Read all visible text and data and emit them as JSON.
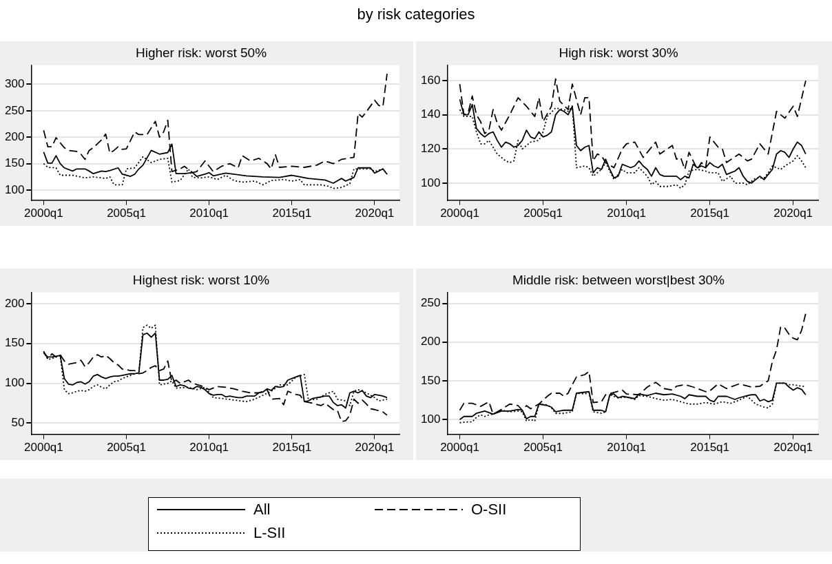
{
  "chart_data": [
    {
      "type": "line",
      "title": "Higher risk: worst 50%",
      "annotations": [
        "by risk categories"
      ],
      "xlim": [
        "1999-04",
        "2021-07"
      ],
      "xticks": [
        {
          "value": "2000-01",
          "label": "2000q1"
        },
        {
          "value": "2005-01",
          "label": "2005q1"
        },
        {
          "value": "2010-01",
          "label": "2010q1"
        },
        {
          "value": "2015-01",
          "label": "2015q1"
        },
        {
          "value": "2020-01",
          "label": "2020q1"
        }
      ],
      "ylim": [
        81,
        336
      ],
      "yticks": [
        100,
        150,
        200,
        250,
        300
      ],
      "grid": "y",
      "series": [
        {
          "color": "#000000",
          "line_style": "solid",
          "x": [
            "2000-01",
            "2000-04",
            "2000-07",
            "2000-10",
            "2001-01",
            "2001-04",
            "2001-10",
            "2002-01",
            "2002-07",
            "2002-10",
            "2003-01",
            "2003-07",
            "2003-10",
            "2004-01",
            "2004-07",
            "2004-10",
            "2005-04",
            "2005-07",
            "2005-10",
            "2006-01",
            "2006-07",
            "2007-01",
            "2007-07",
            "2007-10",
            "2008-01",
            "2008-07",
            "2009-01",
            "2009-04",
            "2009-10",
            "2010-01",
            "2010-04",
            "2011-01",
            "2012-04",
            "2013-04",
            "2014-04",
            "2015-01",
            "2016-01",
            "2017-01",
            "2017-07",
            "2018-01",
            "2018-04",
            "2018-10",
            "2019-01",
            "2019-10",
            "2020-01",
            "2020-07",
            "2020-10"
          ],
          "values": [
            172,
            151,
            151,
            165,
            150,
            142,
            136,
            140,
            140,
            136,
            131,
            136,
            135,
            137,
            142,
            130,
            126,
            130,
            140,
            147,
            175,
            168,
            171,
            187,
            131,
            131,
            133,
            126,
            130,
            133,
            127,
            132,
            127,
            125,
            124,
            128,
            122,
            119,
            113,
            122,
            117,
            124,
            142,
            142,
            132,
            140,
            130
          ]
        },
        {
          "color": "#000000",
          "line_style": "dashed",
          "x": [
            "2000-01",
            "2000-04",
            "2000-07",
            "2000-10",
            "2001-04",
            "2001-07",
            "2002-01",
            "2002-04",
            "2002-07",
            "2002-10",
            "2003-01",
            "2003-07",
            "2003-10",
            "2004-01",
            "2004-04",
            "2004-07",
            "2004-10",
            "2005-01",
            "2005-07",
            "2005-10",
            "2006-04",
            "2006-10",
            "2007-01",
            "2007-04",
            "2007-07",
            "2007-10",
            "2008-04",
            "2008-07",
            "2009-01",
            "2009-04",
            "2009-10",
            "2010-04",
            "2010-10",
            "2011-04",
            "2011-10",
            "2012-01",
            "2012-07",
            "2013-01",
            "2013-07",
            "2013-10",
            "2014-01",
            "2014-04",
            "2015-01",
            "2015-10",
            "2016-07",
            "2017-01",
            "2017-07",
            "2018-01",
            "2018-10",
            "2019-01",
            "2019-04",
            "2019-07",
            "2020-01",
            "2020-04",
            "2020-07",
            "2020-10"
          ],
          "values": [
            213,
            182,
            182,
            199,
            180,
            175,
            173,
            168,
            158,
            175,
            180,
            195,
            206,
            170,
            175,
            182,
            177,
            178,
            210,
            205,
            205,
            230,
            200,
            210,
            232,
            135,
            140,
            145,
            133,
            135,
            155,
            135,
            145,
            150,
            142,
            165,
            155,
            160,
            150,
            140,
            167,
            143,
            145,
            143,
            147,
            155,
            150,
            158,
            162,
            245,
            238,
            248,
            270,
            260,
            258,
            320
          ]
        },
        {
          "color": "#000000",
          "line_style": "dotted",
          "x": [
            "2000-01",
            "2000-04",
            "2000-10",
            "2001-01",
            "2001-10",
            "2002-07",
            "2003-01",
            "2003-10",
            "2004-01",
            "2004-04",
            "2004-10",
            "2005-01",
            "2005-07",
            "2006-01",
            "2006-07",
            "2007-01",
            "2007-07",
            "2007-10",
            "2008-04",
            "2008-10",
            "2009-01",
            "2009-07",
            "2010-01",
            "2010-07",
            "2011-01",
            "2011-07",
            "2012-01",
            "2012-10",
            "2013-04",
            "2013-10",
            "2014-07",
            "2015-01",
            "2015-07",
            "2015-10",
            "2016-10",
            "2017-04",
            "2017-07",
            "2018-01",
            "2018-07",
            "2018-10",
            "2019-10",
            "2020-01",
            "2020-07",
            "2020-10"
          ],
          "values": [
            150,
            143,
            142,
            128,
            128,
            123,
            125,
            122,
            125,
            110,
            110,
            140,
            142,
            163,
            152,
            158,
            160,
            115,
            118,
            140,
            124,
            123,
            125,
            120,
            128,
            118,
            115,
            117,
            110,
            118,
            120,
            117,
            120,
            110,
            110,
            107,
            103,
            105,
            112,
            140,
            140,
            135,
            140,
            130
          ]
        }
      ]
    },
    {
      "type": "line",
      "title": "High risk: worst 30%",
      "xlim": [
        "1999-04",
        "2021-07"
      ],
      "xticks": [
        {
          "value": "2000-01",
          "label": "2000q1"
        },
        {
          "value": "2005-01",
          "label": "2005q1"
        },
        {
          "value": "2010-01",
          "label": "2010q1"
        },
        {
          "value": "2015-01",
          "label": "2015q1"
        },
        {
          "value": "2020-01",
          "label": "2020q1"
        }
      ],
      "ylim": [
        90,
        169
      ],
      "yticks": [
        100,
        120,
        140,
        160
      ],
      "grid": "y",
      "series": [
        {
          "color": "#000000",
          "line_style": "solid",
          "x": [
            "2000-01",
            "2000-04",
            "2000-07",
            "2000-10",
            "2001-01",
            "2001-04",
            "2001-07",
            "2001-10",
            "2002-01",
            "2002-04",
            "2002-07",
            "2002-10",
            "2003-01",
            "2003-04",
            "2003-07",
            "2003-10",
            "2004-01",
            "2004-04",
            "2004-07",
            "2004-10",
            "2005-01",
            "2005-04",
            "2005-07",
            "2005-10",
            "2006-01",
            "2006-04",
            "2006-07",
            "2006-10",
            "2007-01",
            "2007-04",
            "2007-07",
            "2007-10",
            "2008-01",
            "2008-04",
            "2008-07",
            "2008-10",
            "2009-01",
            "2009-04",
            "2009-07",
            "2009-10",
            "2010-01",
            "2010-04",
            "2010-07",
            "2010-10",
            "2011-01",
            "2011-04",
            "2011-07",
            "2011-10",
            "2012-01",
            "2012-04",
            "2012-10",
            "2013-01",
            "2013-04",
            "2013-07",
            "2013-10",
            "2014-01",
            "2014-04",
            "2014-07",
            "2014-10",
            "2015-01",
            "2015-04",
            "2015-07",
            "2015-10",
            "2016-01",
            "2016-04",
            "2016-07",
            "2016-10",
            "2017-01",
            "2017-04",
            "2017-07",
            "2017-10",
            "2018-01",
            "2018-04",
            "2018-07",
            "2018-10",
            "2019-01",
            "2019-04",
            "2019-07",
            "2019-10",
            "2020-01",
            "2020-04",
            "2020-07",
            "2020-10"
          ],
          "values": [
            149,
            140,
            140,
            146,
            132,
            129,
            127,
            129,
            130,
            125,
            121,
            124,
            123,
            121,
            122,
            125,
            131,
            127,
            126,
            130,
            127,
            128,
            130,
            140,
            143,
            142,
            140,
            145,
            122,
            119,
            121,
            122,
            106,
            109,
            108,
            114,
            108,
            103,
            104,
            111,
            110,
            109,
            110,
            113,
            110,
            108,
            104,
            109,
            105,
            104,
            104,
            104,
            102,
            104,
            103,
            111,
            109,
            110,
            109,
            112,
            110,
            109,
            111,
            105,
            106,
            107,
            109,
            104,
            101,
            100,
            102,
            104,
            102,
            105,
            108,
            117,
            119,
            118,
            115,
            120,
            124,
            122,
            117
          ]
        },
        {
          "color": "#000000",
          "line_style": "dashed",
          "x": [
            "2000-01",
            "2000-04",
            "2000-07",
            "2000-10",
            "2001-01",
            "2001-04",
            "2001-07",
            "2001-10",
            "2002-01",
            "2002-04",
            "2002-07",
            "2003-01",
            "2003-07",
            "2004-01",
            "2004-07",
            "2004-10",
            "2005-01",
            "2005-07",
            "2005-10",
            "2006-01",
            "2006-07",
            "2006-10",
            "2007-04",
            "2007-07",
            "2007-10",
            "2008-01",
            "2008-04",
            "2008-07",
            "2008-10",
            "2009-04",
            "2009-10",
            "2010-01",
            "2010-07",
            "2011-01",
            "2011-10",
            "2012-01",
            "2012-10",
            "2013-01",
            "2013-04",
            "2013-07",
            "2013-10",
            "2014-04",
            "2014-07",
            "2014-10",
            "2015-01",
            "2015-07",
            "2015-10",
            "2016-01",
            "2016-10",
            "2017-04",
            "2017-07",
            "2018-01",
            "2018-07",
            "2019-01",
            "2019-07",
            "2020-01",
            "2020-04",
            "2020-10"
          ],
          "values": [
            158,
            140,
            141,
            151,
            140,
            136,
            129,
            131,
            143,
            135,
            131,
            140,
            150,
            145,
            139,
            150,
            136,
            145,
            161,
            148,
            143,
            158,
            140,
            150,
            150,
            113,
            117,
            116,
            112,
            109,
            120,
            123,
            124,
            115,
            124,
            117,
            122,
            114,
            115,
            108,
            118,
            108,
            112,
            109,
            127,
            121,
            120,
            112,
            117,
            113,
            114,
            123,
            117,
            142,
            138,
            145,
            139,
            160
          ]
        },
        {
          "color": "#000000",
          "line_style": "dotted",
          "x": [
            "2000-01",
            "2000-04",
            "2000-10",
            "2001-01",
            "2001-04",
            "2001-07",
            "2001-10",
            "2002-04",
            "2002-10",
            "2003-01",
            "2003-04",
            "2003-07",
            "2003-10",
            "2004-04",
            "2004-10",
            "2005-01",
            "2005-04",
            "2005-10",
            "2006-04",
            "2006-07",
            "2006-10",
            "2007-01",
            "2007-07",
            "2007-10",
            "2008-01",
            "2008-07",
            "2008-10",
            "2009-04",
            "2009-10",
            "2010-01",
            "2010-07",
            "2010-10",
            "2011-04",
            "2011-07",
            "2011-10",
            "2012-01",
            "2012-07",
            "2013-01",
            "2013-04",
            "2013-07",
            "2013-10",
            "2014-04",
            "2014-10",
            "2015-01",
            "2015-07",
            "2015-10",
            "2016-04",
            "2016-07",
            "2017-01",
            "2017-04",
            "2017-10",
            "2018-04",
            "2018-07",
            "2018-10",
            "2019-04",
            "2019-07",
            "2020-01",
            "2020-04",
            "2020-07",
            "2020-10"
          ],
          "values": [
            143,
            139,
            139,
            130,
            123,
            123,
            125,
            117,
            113,
            112,
            113,
            125,
            120,
            124,
            125,
            130,
            139,
            144,
            143,
            142,
            145,
            109,
            110,
            109,
            104,
            108,
            112,
            102,
            108,
            106,
            106,
            109,
            104,
            99,
            101,
            98,
            98,
            99,
            97,
            99,
            107,
            108,
            107,
            106,
            106,
            101,
            104,
            100,
            100,
            99,
            103,
            103,
            106,
            110,
            108,
            110,
            113,
            116,
            113,
            109
          ]
        }
      ]
    },
    {
      "type": "line",
      "title": "Highest risk: worst 10%",
      "xlim": [
        "1999-04",
        "2021-07"
      ],
      "xticks": [
        {
          "value": "2000-01",
          "label": "2000q1"
        },
        {
          "value": "2005-01",
          "label": "2005q1"
        },
        {
          "value": "2010-01",
          "label": "2010q1"
        },
        {
          "value": "2015-01",
          "label": "2015q1"
        },
        {
          "value": "2020-01",
          "label": "2020q1"
        }
      ],
      "ylim": [
        36,
        214
      ],
      "yticks": [
        50,
        100,
        150,
        200
      ],
      "grid": "y",
      "series": [
        {
          "color": "#000000",
          "line_style": "solid",
          "x": [
            "2000-01",
            "2000-04",
            "2000-07",
            "2000-10",
            "2001-01",
            "2001-04",
            "2001-07",
            "2001-10",
            "2002-01",
            "2002-04",
            "2002-07",
            "2002-10",
            "2003-01",
            "2003-04",
            "2003-07",
            "2003-10",
            "2004-01",
            "2004-04",
            "2004-07",
            "2004-10",
            "2005-01",
            "2005-04",
            "2005-07",
            "2005-10",
            "2006-01",
            "2006-04",
            "2006-07",
            "2006-10",
            "2007-01",
            "2007-04",
            "2007-07",
            "2007-10",
            "2008-01",
            "2008-04",
            "2008-07",
            "2008-10",
            "2009-01",
            "2009-04",
            "2009-07",
            "2009-10",
            "2010-01",
            "2010-04",
            "2010-07",
            "2010-10",
            "2011-01",
            "2011-04",
            "2011-07",
            "2011-10",
            "2012-01",
            "2012-04",
            "2012-07",
            "2012-10",
            "2013-01",
            "2013-04",
            "2013-07",
            "2013-10",
            "2014-01",
            "2014-04",
            "2014-07",
            "2014-10",
            "2015-01",
            "2015-04",
            "2015-07",
            "2015-10",
            "2016-01",
            "2016-04",
            "2016-07",
            "2016-10",
            "2017-01",
            "2017-04",
            "2017-07",
            "2017-10",
            "2018-01",
            "2018-04",
            "2018-07",
            "2018-10",
            "2019-01",
            "2019-04",
            "2019-07",
            "2019-10",
            "2020-01",
            "2020-04",
            "2020-07",
            "2020-10"
          ],
          "values": [
            138,
            133,
            133,
            134,
            135,
            106,
            99,
            98,
            101,
            102,
            99,
            102,
            109,
            111,
            108,
            106,
            108,
            109,
            109,
            110,
            111,
            112,
            112,
            113,
            161,
            163,
            158,
            163,
            104,
            104,
            105,
            110,
            96,
            98,
            97,
            94,
            93,
            96,
            95,
            92,
            87,
            85,
            86,
            86,
            83,
            84,
            83,
            82,
            82,
            84,
            84,
            84,
            88,
            89,
            93,
            91,
            96,
            95,
            96,
            104,
            106,
            108,
            110,
            77,
            78,
            81,
            82,
            83,
            84,
            84,
            76,
            72,
            73,
            69,
            88,
            90,
            88,
            91,
            84,
            82,
            86,
            85,
            84,
            82
          ]
        },
        {
          "color": "#000000",
          "line_style": "dashed",
          "x": [
            "2000-01",
            "2000-04",
            "2000-07",
            "2000-10",
            "2001-01",
            "2001-04",
            "2001-07",
            "2001-10",
            "2002-01",
            "2002-04",
            "2002-07",
            "2002-10",
            "2003-01",
            "2003-04",
            "2003-07",
            "2003-10",
            "2004-01",
            "2004-04",
            "2004-07",
            "2004-10",
            "2005-01",
            "2005-04",
            "2005-07",
            "2005-10",
            "2006-01",
            "2006-04",
            "2006-07",
            "2006-10",
            "2007-01",
            "2007-04",
            "2007-07",
            "2007-10",
            "2008-01",
            "2008-04",
            "2008-10",
            "2009-01",
            "2009-07",
            "2010-01",
            "2010-07",
            "2011-01",
            "2011-07",
            "2012-01",
            "2012-07",
            "2013-01",
            "2013-07",
            "2013-10",
            "2014-04",
            "2014-07",
            "2014-10",
            "2015-04",
            "2015-07",
            "2015-10",
            "2016-04",
            "2016-10",
            "2017-01",
            "2017-07",
            "2017-10",
            "2018-01",
            "2018-04",
            "2018-07",
            "2018-10",
            "2019-01",
            "2019-04",
            "2019-07",
            "2019-10",
            "2020-01",
            "2020-07",
            "2020-10"
          ],
          "values": [
            140,
            131,
            137,
            133,
            136,
            128,
            124,
            125,
            126,
            129,
            121,
            126,
            133,
            136,
            133,
            135,
            131,
            126,
            123,
            118,
            117,
            116,
            116,
            112,
            113,
            116,
            120,
            122,
            116,
            118,
            128,
            101,
            104,
            100,
            104,
            100,
            97,
            92,
            96,
            95,
            93,
            90,
            88,
            88,
            92,
            80,
            81,
            73,
            90,
            86,
            85,
            77,
            75,
            72,
            75,
            67,
            66,
            52,
            53,
            60,
            80,
            75,
            79,
            74,
            68,
            67,
            64,
            60
          ]
        },
        {
          "color": "#000000",
          "line_style": "dotted",
          "x": [
            "2000-01",
            "2000-04",
            "2000-07",
            "2000-10",
            "2001-01",
            "2001-04",
            "2001-07",
            "2001-10",
            "2002-01",
            "2002-04",
            "2002-07",
            "2002-10",
            "2003-01",
            "2003-04",
            "2003-07",
            "2003-10",
            "2004-01",
            "2004-04",
            "2004-07",
            "2004-10",
            "2005-01",
            "2005-04",
            "2005-07",
            "2005-10",
            "2006-01",
            "2006-04",
            "2006-07",
            "2006-10",
            "2007-01",
            "2007-04",
            "2007-07",
            "2007-10",
            "2008-01",
            "2008-10",
            "2009-04",
            "2009-10",
            "2010-04",
            "2010-10",
            "2011-07",
            "2012-04",
            "2012-10",
            "2013-04",
            "2013-10",
            "2014-04",
            "2014-10",
            "2015-04",
            "2015-10",
            "2016-01",
            "2016-07",
            "2017-01",
            "2017-07",
            "2017-10",
            "2018-04",
            "2018-07",
            "2018-10",
            "2019-01",
            "2019-07",
            "2020-01",
            "2020-04",
            "2020-10"
          ],
          "values": [
            140,
            130,
            131,
            133,
            135,
            92,
            87,
            88,
            90,
            91,
            90,
            92,
            96,
            98,
            95,
            93,
            98,
            102,
            103,
            106,
            108,
            110,
            112,
            113,
            170,
            173,
            169,
            173,
            98,
            99,
            100,
            103,
            94,
            95,
            92,
            95,
            82,
            81,
            79,
            77,
            80,
            85,
            90,
            98,
            98,
            108,
            111,
            79,
            80,
            86,
            90,
            80,
            78,
            72,
            90,
            92,
            88,
            82,
            78,
            80
          ]
        }
      ]
    },
    {
      "type": "line",
      "title": "Middle risk: between worst|best 30%",
      "legend": "bottom",
      "xlim": [
        "1999-04",
        "2021-07"
      ],
      "xticks": [
        {
          "value": "2000-01",
          "label": "2000q1"
        },
        {
          "value": "2005-01",
          "label": "2005q1"
        },
        {
          "value": "2010-01",
          "label": "2010q1"
        },
        {
          "value": "2015-01",
          "label": "2015q1"
        },
        {
          "value": "2020-01",
          "label": "2020q1"
        }
      ],
      "ylim": [
        81,
        264
      ],
      "yticks": [
        100,
        150,
        200,
        250
      ],
      "grid": "y",
      "series": [
        {
          "name": "All",
          "color": "#000000",
          "line_style": "solid",
          "x": [
            "2000-01",
            "2000-04",
            "2000-10",
            "2001-01",
            "2001-07",
            "2002-01",
            "2002-07",
            "2003-01",
            "2003-07",
            "2003-10",
            "2004-01",
            "2004-04",
            "2004-07",
            "2004-10",
            "2005-04",
            "2005-07",
            "2005-10",
            "2006-04",
            "2006-10",
            "2007-01",
            "2007-10",
            "2008-01",
            "2008-07",
            "2008-10",
            "2009-01",
            "2009-04",
            "2009-07",
            "2009-10",
            "2010-04",
            "2010-07",
            "2010-10",
            "2011-04",
            "2011-10",
            "2012-04",
            "2012-10",
            "2013-04",
            "2013-07",
            "2013-10",
            "2014-04",
            "2014-10",
            "2015-01",
            "2015-04",
            "2015-07",
            "2016-01",
            "2016-04",
            "2016-07",
            "2016-10",
            "2017-04",
            "2017-07",
            "2017-10",
            "2018-01",
            "2018-04",
            "2018-07",
            "2018-10",
            "2019-01",
            "2019-07",
            "2019-10",
            "2020-01",
            "2020-04",
            "2020-07",
            "2020-10"
          ],
          "values": [
            100,
            104,
            104,
            108,
            111,
            107,
            111,
            111,
            113,
            112,
            101,
            104,
            104,
            120,
            118,
            116,
            110,
            112,
            112,
            134,
            136,
            112,
            112,
            110,
            132,
            133,
            128,
            130,
            128,
            127,
            133,
            131,
            134,
            132,
            133,
            130,
            127,
            132,
            130,
            130,
            125,
            123,
            130,
            130,
            128,
            126,
            128,
            131,
            132,
            132,
            124,
            126,
            123,
            125,
            147,
            147,
            142,
            138,
            141,
            139,
            132
          ]
        },
        {
          "name": "O-SII",
          "color": "#000000",
          "line_style": "dashed",
          "x": [
            "2000-01",
            "2000-04",
            "2000-10",
            "2001-04",
            "2001-10",
            "2002-01",
            "2002-07",
            "2003-01",
            "2003-07",
            "2003-10",
            "2004-01",
            "2004-04",
            "2004-10",
            "2005-04",
            "2005-07",
            "2006-01",
            "2006-04",
            "2006-07",
            "2006-10",
            "2007-01",
            "2007-07",
            "2007-10",
            "2008-01",
            "2008-07",
            "2008-10",
            "2009-10",
            "2010-01",
            "2010-10",
            "2011-04",
            "2011-10",
            "2012-04",
            "2012-10",
            "2013-01",
            "2013-07",
            "2014-01",
            "2014-10",
            "2015-01",
            "2015-07",
            "2016-01",
            "2016-10",
            "2017-07",
            "2018-01",
            "2018-07",
            "2018-10",
            "2019-01",
            "2019-04",
            "2019-07",
            "2019-10",
            "2020-01",
            "2020-04",
            "2020-07",
            "2020-10"
          ],
          "values": [
            112,
            121,
            121,
            117,
            123,
            107,
            113,
            120,
            118,
            112,
            118,
            114,
            120,
            130,
            134,
            134,
            130,
            134,
            145,
            155,
            158,
            162,
            122,
            123,
            132,
            138,
            133,
            132,
            142,
            148,
            140,
            138,
            143,
            145,
            142,
            136,
            137,
            146,
            140,
            146,
            142,
            143,
            150,
            175,
            190,
            220,
            218,
            210,
            205,
            203,
            215,
            237
          ]
        },
        {
          "name": "L-SII",
          "color": "#000000",
          "line_style": "dotted",
          "x": [
            "2000-01",
            "2000-07",
            "2000-10",
            "2001-01",
            "2001-04",
            "2001-07",
            "2001-10",
            "2002-01",
            "2002-07",
            "2003-01",
            "2003-07",
            "2003-10",
            "2004-01",
            "2004-04",
            "2004-07",
            "2004-10",
            "2005-04",
            "2005-07",
            "2005-10",
            "2006-04",
            "2006-10",
            "2007-01",
            "2007-07",
            "2007-10",
            "2008-01",
            "2008-07",
            "2008-10",
            "2009-01",
            "2009-07",
            "2010-01",
            "2010-07",
            "2010-10",
            "2011-04",
            "2011-10",
            "2012-04",
            "2012-10",
            "2013-04",
            "2013-10",
            "2014-04",
            "2014-10",
            "2015-04",
            "2015-10",
            "2016-04",
            "2016-10",
            "2017-04",
            "2017-10",
            "2018-04",
            "2018-07",
            "2018-10",
            "2019-01",
            "2019-07",
            "2019-10",
            "2020-01",
            "2020-07",
            "2020-10"
          ],
          "values": [
            96,
            97,
            97,
            103,
            106,
            104,
            106,
            107,
            112,
            110,
            111,
            110,
            98,
            100,
            98,
            120,
            119,
            115,
            108,
            108,
            110,
            134,
            133,
            135,
            110,
            108,
            110,
            132,
            128,
            129,
            126,
            131,
            130,
            127,
            125,
            126,
            123,
            120,
            120,
            122,
            120,
            123,
            121,
            125,
            130,
            120,
            116,
            115,
            120,
            147,
            147,
            145,
            145,
            143,
            143
          ]
        }
      ]
    }
  ]
}
